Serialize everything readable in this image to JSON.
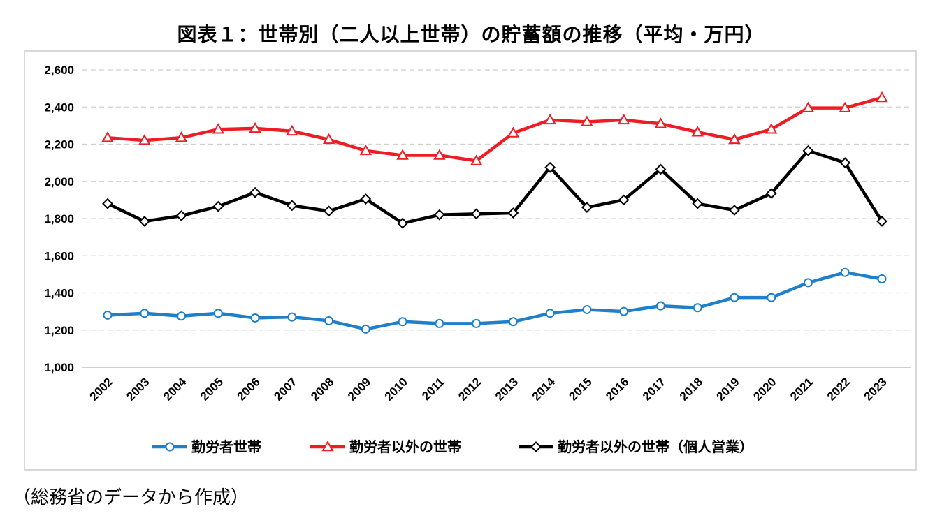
{
  "title": "図表１：世帯別（二人以上世帯）の貯蓄額の推移（平均・万円）",
  "source": "（総務省のデータから作成）",
  "chart_data": {
    "type": "line",
    "title": "図表１：世帯別（二人以上世帯）の貯蓄額の推移（平均・万円）",
    "xlabel": "",
    "ylabel": "",
    "ylim": [
      1000,
      2600
    ],
    "yticks": [
      1000,
      1200,
      1400,
      1600,
      1800,
      2000,
      2200,
      2400,
      2600
    ],
    "ytick_labels": [
      "1,000",
      "1,200",
      "1,400",
      "1,600",
      "1,800",
      "2,000",
      "2,200",
      "2,400",
      "2,600"
    ],
    "grid": "horizontal dashed",
    "legend_position": "bottom",
    "categories": [
      "2002",
      "2003",
      "2004",
      "2005",
      "2006",
      "2007",
      "2008",
      "2009",
      "2010",
      "2011",
      "2012",
      "2013",
      "2014",
      "2015",
      "2016",
      "2017",
      "2018",
      "2019",
      "2020",
      "2021",
      "2022",
      "2023"
    ],
    "series": [
      {
        "name": "勤労者世帯",
        "color": "#1f7fc9",
        "marker": "circle",
        "values": [
          1280,
          1290,
          1275,
          1290,
          1265,
          1270,
          1250,
          1205,
          1245,
          1235,
          1235,
          1245,
          1290,
          1310,
          1300,
          1330,
          1320,
          1375,
          1375,
          1455,
          1510,
          1475
        ]
      },
      {
        "name": "勤労者以外の世帯",
        "color": "#ee1c24",
        "marker": "triangle",
        "values": [
          2235,
          2220,
          2235,
          2280,
          2285,
          2270,
          2225,
          2165,
          2140,
          2140,
          2110,
          2260,
          2330,
          2320,
          2330,
          2310,
          2265,
          2225,
          2280,
          2395,
          2395,
          2450
        ]
      },
      {
        "name": "勤労者以外の世帯（個人営業）",
        "color": "#000000",
        "marker": "diamond",
        "values": [
          1880,
          1785,
          1815,
          1865,
          1940,
          1870,
          1840,
          1905,
          1775,
          1820,
          1825,
          1830,
          2075,
          1860,
          1900,
          2065,
          1880,
          1845,
          1935,
          2165,
          2100,
          1785
        ]
      }
    ]
  }
}
